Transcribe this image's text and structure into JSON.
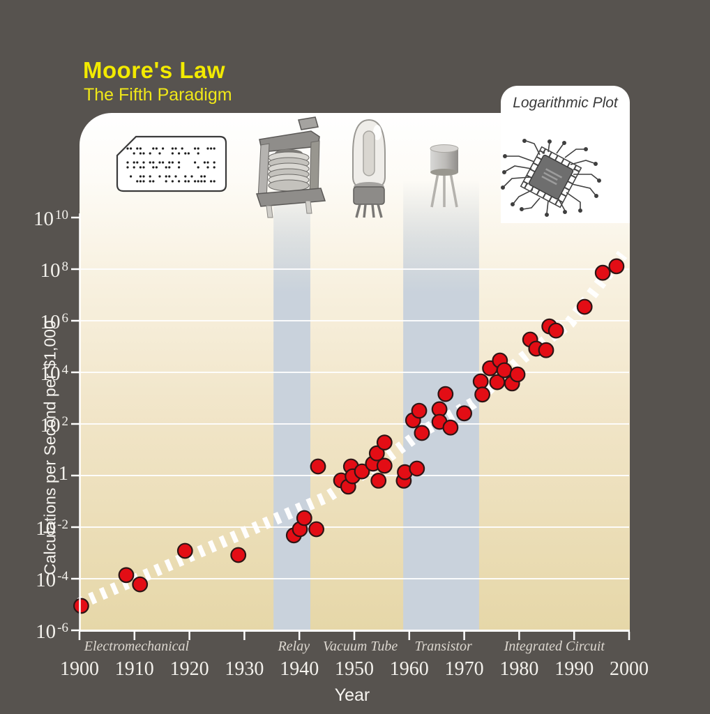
{
  "header": {
    "title": "Moore's Law",
    "subtitle": "The Fifth Paradigm"
  },
  "inset": {
    "label": "Logarithmic Plot"
  },
  "icons": [
    {
      "name": "punch-card-icon"
    },
    {
      "name": "relay-icon"
    },
    {
      "name": "vacuum-tube-icon"
    },
    {
      "name": "transistor-icon"
    },
    {
      "name": "integrated-circuit-icon"
    }
  ],
  "colors": {
    "background": "#57534f",
    "accent_yellow": "#f2ea00",
    "plot_tan": "#e6d7a8",
    "era_band_blue": "#c9d2dc",
    "data_point_red": "#e30d15",
    "trend_line": "#ffffff",
    "gridline": "#ffffff"
  },
  "chart_data": {
    "type": "scatter",
    "title": "Moore's Law",
    "subtitle": "The Fifth Paradigm",
    "scale_note": "Logarithmic Plot",
    "xlabel": "Year",
    "ylabel": "Calculations per Second per $1,000",
    "x_range": [
      1900,
      2000
    ],
    "x_ticks": [
      1900,
      1910,
      1920,
      1930,
      1940,
      1950,
      1960,
      1970,
      1980,
      1990,
      2000
    ],
    "y_scale": "log10",
    "y_tick_exponents": [
      10,
      8,
      6,
      4,
      2,
      0,
      -2,
      -4,
      -6
    ],
    "gridline_exponents": [
      8,
      6,
      4,
      2,
      0,
      -2,
      -4
    ],
    "grid": true,
    "eras": [
      {
        "label": "Electromechanical",
        "center_year": 1910.4,
        "band_years": null
      },
      {
        "label": "Relay",
        "center_year": 1939.0,
        "band_years": [
          1935.3,
          1942.0
        ]
      },
      {
        "label": "Vacuum Tube",
        "center_year": 1951.1,
        "band_years": null
      },
      {
        "label": "Transistor",
        "center_year": 1966.2,
        "band_years": [
          1958.9,
          1972.7
        ]
      },
      {
        "label": "Integrated Circuit",
        "center_year": 1986.4,
        "band_years": null
      }
    ],
    "points_format": [
      "year",
      "log10_calcs_per_sec_per_$1000"
    ],
    "points": [
      [
        1900.3,
        -5.05
      ],
      [
        1908.5,
        -3.86
      ],
      [
        1911.0,
        -4.22
      ],
      [
        1919.2,
        -2.92
      ],
      [
        1928.9,
        -3.08
      ],
      [
        1939.0,
        -2.32
      ],
      [
        1940.1,
        -2.08
      ],
      [
        1940.9,
        -1.65
      ],
      [
        1943.1,
        -2.08
      ],
      [
        1943.4,
        0.35
      ],
      [
        1947.6,
        -0.19
      ],
      [
        1948.9,
        -0.43
      ],
      [
        1949.4,
        0.35
      ],
      [
        1949.7,
        -0.03
      ],
      [
        1951.4,
        0.16
      ],
      [
        1953.4,
        0.46
      ],
      [
        1954.1,
        0.86
      ],
      [
        1954.4,
        -0.2
      ],
      [
        1955.5,
        1.28
      ],
      [
        1955.5,
        0.38
      ],
      [
        1959.0,
        -0.2
      ],
      [
        1959.2,
        0.13
      ],
      [
        1960.7,
        2.14
      ],
      [
        1961.4,
        0.27
      ],
      [
        1961.8,
        2.51
      ],
      [
        1962.3,
        1.65
      ],
      [
        1965.5,
        2.57
      ],
      [
        1965.5,
        2.08
      ],
      [
        1966.6,
        3.16
      ],
      [
        1967.5,
        1.86
      ],
      [
        1970.0,
        2.41
      ],
      [
        1973.0,
        3.65
      ],
      [
        1973.3,
        3.14
      ],
      [
        1974.7,
        4.16
      ],
      [
        1976.0,
        3.62
      ],
      [
        1976.5,
        4.46
      ],
      [
        1977.3,
        4.08
      ],
      [
        1978.7,
        3.57
      ],
      [
        1979.7,
        3.92
      ],
      [
        1982.0,
        5.27
      ],
      [
        1983.1,
        4.92
      ],
      [
        1984.9,
        4.86
      ],
      [
        1985.5,
        5.78
      ],
      [
        1986.7,
        5.62
      ],
      [
        1991.9,
        6.54
      ],
      [
        1995.2,
        7.86
      ],
      [
        1997.7,
        8.11
      ]
    ],
    "trend_line": [
      [
        1900.0,
        -4.97
      ],
      [
        1945.2,
        -0.81
      ],
      [
        1954.1,
        0.41
      ],
      [
        1962.6,
        1.73
      ],
      [
        1971.6,
        2.81
      ],
      [
        1980.7,
        4.57
      ],
      [
        1989.2,
        5.92
      ],
      [
        1998.8,
        8.57
      ]
    ],
    "legend": null
  }
}
